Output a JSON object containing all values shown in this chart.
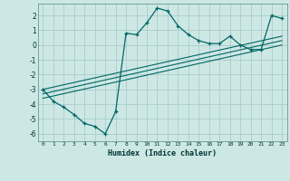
{
  "title": "",
  "xlabel": "Humidex (Indice chaleur)",
  "ylabel": "",
  "background_color": "#cde8e4",
  "grid_color": "#aacccc",
  "line_color": "#006666",
  "xlim": [
    -0.5,
    23.5
  ],
  "ylim": [
    -6.5,
    2.8
  ],
  "yticks": [
    -6,
    -5,
    -4,
    -3,
    -2,
    -1,
    0,
    1,
    2
  ],
  "xticks": [
    0,
    1,
    2,
    3,
    4,
    5,
    6,
    7,
    8,
    9,
    10,
    11,
    12,
    13,
    14,
    15,
    16,
    17,
    18,
    19,
    20,
    21,
    22,
    23
  ],
  "xtick_labels": [
    "0",
    "1",
    "2",
    "3",
    "4",
    "5",
    "6",
    "7",
    "8",
    "9",
    "10",
    "11",
    "12",
    "13",
    "14",
    "15",
    "16",
    "17",
    "18",
    "19",
    "20",
    "21",
    "22",
    "23"
  ],
  "main_x": [
    0,
    1,
    2,
    3,
    4,
    5,
    6,
    7,
    8,
    9,
    10,
    11,
    12,
    13,
    14,
    15,
    16,
    17,
    18,
    19,
    20,
    21,
    22,
    23
  ],
  "main_y": [
    -3.0,
    -3.8,
    -4.2,
    -4.7,
    -5.3,
    -5.5,
    -6.0,
    -4.5,
    0.8,
    0.7,
    1.5,
    2.5,
    2.3,
    1.3,
    0.7,
    0.3,
    0.1,
    0.1,
    0.6,
    0.0,
    -0.3,
    -0.3,
    2.0,
    1.8
  ],
  "line1_x": [
    0,
    23
  ],
  "line1_y": [
    -3.6,
    0.0
  ],
  "line2_x": [
    0,
    23
  ],
  "line2_y": [
    -3.3,
    0.3
  ],
  "line3_x": [
    0,
    23
  ],
  "line3_y": [
    -3.0,
    0.6
  ]
}
